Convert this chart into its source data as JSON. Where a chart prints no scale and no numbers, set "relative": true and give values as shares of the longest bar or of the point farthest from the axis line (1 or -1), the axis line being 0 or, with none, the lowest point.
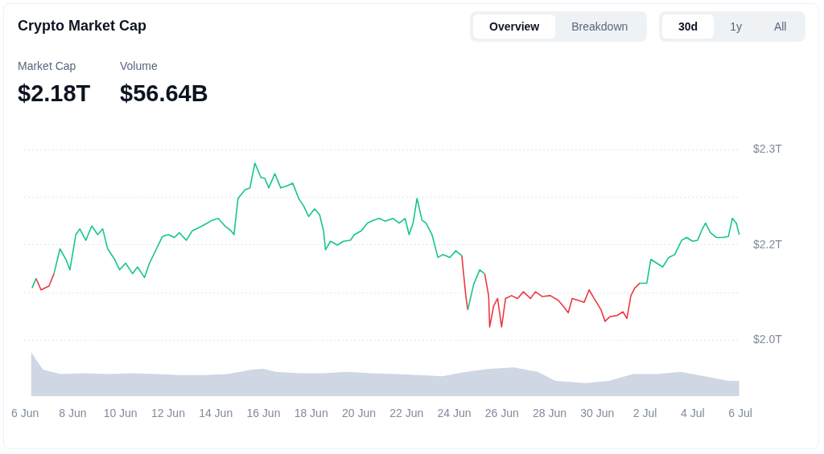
{
  "chart_data": [
    {
      "type": "line",
      "title": "Crypto Market Cap",
      "annotations": [
        "Market Cap",
        "$2.18T",
        "Volume",
        "$56.64B",
        "Overview",
        "Breakdown",
        "30d",
        "1y",
        "All"
      ],
      "x": [
        "--06-06T08:00",
        "--06-06T12:00",
        "--06-06T17:00",
        "--06-07T01:00",
        "--06-07T06:00",
        "--06-07T12:00",
        "--06-07T18:00",
        "--06-07T22:00",
        "--06-08T04:00",
        "--06-08T08:00",
        "--06-08T14:00",
        "--06-08T20:00",
        "--06-09T02:00",
        "--06-09T07:00",
        "--06-09T12:00",
        "--06-09T19:00",
        "--06-10T00:00",
        "--06-10T06:00",
        "--06-10T13:00",
        "--06-10T18:00",
        "--06-11T01:00",
        "--06-11T06:00",
        "--06-11T13:00",
        "--06-11T19:00",
        "--06-12T01:00",
        "--06-12T07:00",
        "--06-12T12:00",
        "--06-12T19:00",
        "--06-13T01:00",
        "--06-13T09:00",
        "--06-13T16:00",
        "--06-13T21:00",
        "--06-14T03:00",
        "--06-14T10:00",
        "--06-14T16:00",
        "--06-14T19:00",
        "--06-14T23:00",
        "--06-15T06:00",
        "--06-15T11:00",
        "--06-15T16:00",
        "--06-15T22:00",
        "--06-16T02:00",
        "--06-16T06:00",
        "--06-16T12:00",
        "--06-16T18:00",
        "--06-17T00:00",
        "--06-17T06:00",
        "--06-17T12:00",
        "--06-17T17:00",
        "--06-17T22:00",
        "--06-18T04:00",
        "--06-18T09:00",
        "--06-18T13:00",
        "--06-18T15:00",
        "--06-18T20:00",
        "--06-19T03:00",
        "--06-19T09:00",
        "--06-19T16:00",
        "--06-19T20:00",
        "--06-20T03:00",
        "--06-20T09:00",
        "--06-20T15:00",
        "--06-20T21:00",
        "--06-21T03:00",
        "--06-21T11:00",
        "--06-21T17:00",
        "--06-21T23:00",
        "--06-22T03:00",
        "--06-22T07:00",
        "--06-22T11:00",
        "--06-22T16:00",
        "--06-22T20:00",
        "--06-23T02:00",
        "--06-23T08:00",
        "--06-23T13:00",
        "--06-23T20:00",
        "--06-24T02:00",
        "--06-24T08:00",
        "--06-24T12:00",
        "--06-24T14:00",
        "--06-24T20:00",
        "--06-25T02:00",
        "--06-25T07:00",
        "--06-25T11:00",
        "--06-25T12:00",
        "--06-25T16:00",
        "--06-25T20:00",
        "--06-26T00:00",
        "--06-26T04:00",
        "--06-26T10:00",
        "--06-26T16:00",
        "--06-26T22:00",
        "--06-27T05:00",
        "--06-27T10:00",
        "--06-27T17:00",
        "--06-28T01:00",
        "--06-28T09:00",
        "--06-28T14:00",
        "--06-28T19:00",
        "--06-28T23:00",
        "--06-29T05:00",
        "--06-29T11:00",
        "--06-29T16:00",
        "--06-29T21:00",
        "--06-30T04:00",
        "--06-30T08:00",
        "--06-30T13:00",
        "--06-30T20:00",
        "--07-01T02:00",
        "--07-01T06:00",
        "--07-01T10:00",
        "--07-01T14:00",
        "--07-01T19:00",
        "--07-02T02:00",
        "--07-02T06:00",
        "--07-02T12:00",
        "--07-02T18:00",
        "--07-03T00:00",
        "--07-03T06:00",
        "--07-03T13:00",
        "--07-03T18:00",
        "--07-04T00:00",
        "--07-04T05:00",
        "--07-04T09:00",
        "--07-04T13:00",
        "--07-04T18:00",
        "--07-05T00:00",
        "--07-05T07:00",
        "--07-05T12:00",
        "--07-05T16:00",
        "--07-05T20:00",
        "--07-05T23:00"
      ],
      "series": [
        {
          "color": "#16c784",
          "values": [
            2.105,
            2.115,
            null,
            null,
            2.12,
            2.146,
            2.135,
            2.124,
            2.161,
            2.167,
            2.155,
            2.17,
            2.161,
            2.167,
            2.146,
            2.135,
            2.124,
            2.131,
            2.12,
            2.127,
            2.116,
            2.131,
            2.146,
            2.159,
            2.161,
            2.158,
            2.163,
            2.155,
            2.165,
            2.169,
            2.173,
            2.176,
            2.178,
            2.17,
            2.165,
            2.161,
            2.199,
            2.208,
            2.21,
            2.236,
            2.221,
            2.22,
            2.21,
            2.225,
            2.21,
            2.212,
            2.215,
            2.199,
            2.191,
            2.18,
            2.188,
            2.182,
            2.165,
            2.145,
            2.154,
            2.15,
            2.154,
            2.155,
            2.161,
            2.165,
            2.173,
            2.176,
            2.178,
            2.175,
            2.178,
            2.173,
            2.178,
            2.161,
            2.173,
            2.199,
            2.176,
            2.173,
            2.161,
            2.137,
            2.14,
            2.137,
            2.144,
            2.139,
            null,
            2.082,
            2.109,
            2.124,
            2.12,
            null,
            null,
            null,
            null,
            null,
            null,
            null,
            null,
            null,
            null,
            null,
            null,
            null,
            null,
            null,
            null,
            null,
            null,
            null,
            null,
            null,
            null,
            null,
            null,
            null,
            null,
            null,
            null,
            null,
            2.11,
            2.11,
            2.135,
            2.131,
            2.127,
            2.137,
            2.14,
            2.155,
            2.158,
            2.154,
            2.155,
            2.165,
            2.173,
            2.163,
            2.158,
            2.158,
            2.159,
            2.178,
            2.173,
            2.161
          ]
        },
        {
          "color": "#ea3943",
          "values": [
            null,
            2.115,
            2.103,
            2.107,
            2.12,
            null,
            null,
            null,
            null,
            null,
            null,
            null,
            null,
            null,
            null,
            null,
            null,
            null,
            null,
            null,
            null,
            null,
            null,
            null,
            null,
            null,
            null,
            null,
            null,
            null,
            null,
            null,
            null,
            null,
            null,
            null,
            null,
            null,
            null,
            null,
            null,
            null,
            null,
            null,
            null,
            null,
            null,
            null,
            null,
            null,
            null,
            null,
            null,
            null,
            null,
            null,
            null,
            null,
            null,
            null,
            null,
            null,
            null,
            null,
            null,
            null,
            null,
            null,
            null,
            null,
            null,
            null,
            null,
            null,
            null,
            null,
            null,
            2.139,
            2.097,
            2.082,
            null,
            null,
            2.12,
            2.097,
            2.064,
            2.086,
            2.094,
            2.064,
            2.094,
            2.097,
            2.094,
            2.101,
            2.094,
            2.101,
            2.096,
            2.097,
            2.092,
            2.086,
            2.079,
            2.094,
            2.092,
            2.09,
            2.103,
            2.094,
            2.082,
            2.07,
            2.075,
            2.076,
            2.08,
            2.073,
            2.097,
            2.105,
            2.11,
            null,
            null,
            null,
            null,
            null,
            null,
            null,
            null,
            null,
            null,
            null,
            null,
            null,
            null,
            null,
            null,
            null,
            null,
            null
          ]
        }
      ],
      "xlim": [
        "--06-06T00:00",
        "--07-06T00:00"
      ],
      "ylim": [
        2.05,
        2.25
      ],
      "yticks": [
        {
          "value": 2.05,
          "label": "$2.0T"
        },
        {
          "value": 2.1,
          "label": null
        },
        {
          "value": 2.15,
          "label": "$2.2T"
        },
        {
          "value": 2.2,
          "label": null
        },
        {
          "value": 2.25,
          "label": "$2.3T"
        }
      ],
      "tick_labels": "y",
      "grid": "y",
      "legend": false,
      "marker": "none",
      "line_style": "solid"
    },
    {
      "type": "area",
      "relative": true,
      "x": [
        "--06-06T06:00",
        "--06-06T18:00",
        "--06-07T12:00",
        "--06-08T12:00",
        "--06-09T12:00",
        "--06-10T12:00",
        "--06-11T12:00",
        "--06-12T12:00",
        "--06-13T12:00",
        "--06-14T12:00",
        "--06-15T12:00",
        "--06-16T00:00",
        "--06-16T12:00",
        "--06-17T12:00",
        "--06-18T12:00",
        "--06-19T12:00",
        "--06-20T12:00",
        "--06-21T12:00",
        "--06-22T12:00",
        "--06-23T12:00",
        "--06-24T12:00",
        "--06-25T12:00",
        "--06-26T12:00",
        "--06-27T12:00",
        "--06-28T06:00",
        "--06-29T12:00",
        "--06-30T12:00",
        "--07-01T12:00",
        "--07-02T12:00",
        "--07-03T12:00",
        "--07-04T12:00",
        "--07-05T12:00",
        "--07-05T23:00"
      ],
      "series": [
        {
          "color": "#cfd6e4",
          "values": [
            1.0,
            0.6,
            0.5,
            0.52,
            0.5,
            0.52,
            0.5,
            0.48,
            0.48,
            0.5,
            0.6,
            0.62,
            0.55,
            0.52,
            0.52,
            0.55,
            0.52,
            0.5,
            0.48,
            0.45,
            0.55,
            0.62,
            0.65,
            0.55,
            0.35,
            0.3,
            0.35,
            0.5,
            0.5,
            0.55,
            0.45,
            0.35,
            0.35
          ]
        }
      ],
      "xlim": [
        "--06-06T00:00",
        "--07-06T00:00"
      ],
      "xticks": [
        {
          "value": "--06-06T00:00",
          "label": "6 Jun"
        },
        {
          "value": "--06-08T00:00",
          "label": "8 Jun"
        },
        {
          "value": "--06-10T00:00",
          "label": "10 Jun"
        },
        {
          "value": "--06-12T00:00",
          "label": "12 Jun"
        },
        {
          "value": "--06-14T00:00",
          "label": "14 Jun"
        },
        {
          "value": "--06-16T00:00",
          "label": "16 Jun"
        },
        {
          "value": "--06-18T00:00",
          "label": "18 Jun"
        },
        {
          "value": "--06-20T00:00",
          "label": "20 Jun"
        },
        {
          "value": "--06-22T00:00",
          "label": "22 Jun"
        },
        {
          "value": "--06-24T00:00",
          "label": "24 Jun"
        },
        {
          "value": "--06-26T00:00",
          "label": "26 Jun"
        },
        {
          "value": "--06-28T00:00",
          "label": "28 Jun"
        },
        {
          "value": "--06-30T00:00",
          "label": "30 Jun"
        },
        {
          "value": "--07-02T00:00",
          "label": "2 Jul"
        },
        {
          "value": "--07-04T00:00",
          "label": "4 Jul"
        },
        {
          "value": "--07-06T00:00",
          "label": "6 Jul"
        }
      ],
      "tick_labels": "x",
      "grid": false,
      "legend": false,
      "marker": "none"
    }
  ]
}
